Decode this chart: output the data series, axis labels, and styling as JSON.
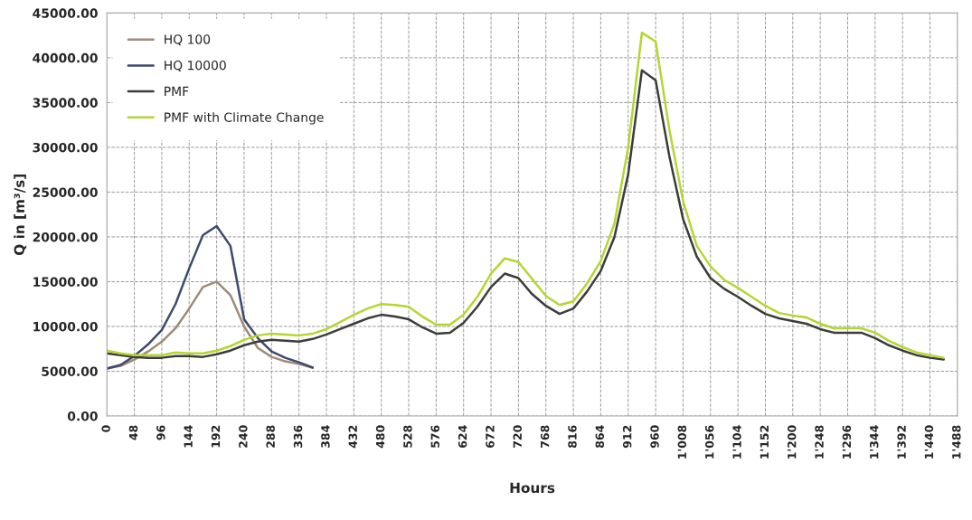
{
  "chart_data": {
    "type": "line",
    "xlabel": "Hours",
    "ylabel": "Q in [m³/s]",
    "grid": true,
    "legend": "top left",
    "line_style": "solid",
    "marker": "none",
    "xlim": [
      0,
      1488
    ],
    "ylim": [
      0,
      45000
    ],
    "xticks": [
      0,
      48,
      96,
      144,
      192,
      240,
      288,
      336,
      384,
      432,
      480,
      528,
      576,
      624,
      672,
      720,
      768,
      816,
      864,
      912,
      960,
      {
        "value": 1008,
        "label": "1'008"
      },
      {
        "value": 1056,
        "label": "1'056"
      },
      {
        "value": 1104,
        "label": "1'104"
      },
      {
        "value": 1152,
        "label": "1'152"
      },
      {
        "value": 1200,
        "label": "1'200"
      },
      {
        "value": 1248,
        "label": "1'248"
      },
      {
        "value": 1296,
        "label": "1'296"
      },
      {
        "value": 1344,
        "label": "1'344"
      },
      {
        "value": 1392,
        "label": "1'392"
      },
      {
        "value": 1440,
        "label": "1'440"
      },
      {
        "value": 1488,
        "label": "1'488"
      }
    ],
    "yticks": [
      {
        "value": 0,
        "label": "0.00"
      },
      {
        "value": 5000,
        "label": "5000.00"
      },
      {
        "value": 10000,
        "label": "10000.00"
      },
      {
        "value": 15000,
        "label": "15000.00"
      },
      {
        "value": 20000,
        "label": "20000.00"
      },
      {
        "value": 25000,
        "label": "25000.00"
      },
      {
        "value": 30000,
        "label": "30000.00"
      },
      {
        "value": 35000,
        "label": "35000.00"
      },
      {
        "value": 40000,
        "label": "40000.00"
      },
      {
        "value": 45000,
        "label": "45000.00"
      }
    ],
    "series": [
      {
        "name": "HQ 100",
        "color": "#a08a78",
        "x": [
          0,
          24,
          48,
          72,
          96,
          120,
          144,
          168,
          192,
          216,
          240,
          264,
          288,
          312,
          336,
          360
        ],
        "values": [
          5300,
          5600,
          6300,
          7200,
          8300,
          9800,
          12000,
          14400,
          15000,
          13500,
          10000,
          7600,
          6600,
          6100,
          5800,
          5400
        ]
      },
      {
        "name": "HQ 10000",
        "color": "#3e4a6e",
        "x": [
          0,
          24,
          48,
          72,
          96,
          120,
          144,
          168,
          192,
          216,
          240,
          264,
          288,
          312,
          336,
          360
        ],
        "values": [
          5300,
          5700,
          6700,
          8000,
          9600,
          12500,
          16500,
          20200,
          21200,
          19000,
          10800,
          8700,
          7200,
          6500,
          6000,
          5400
        ]
      },
      {
        "name": "PMF",
        "color": "#3c3c3c",
        "x": [
          0,
          24,
          48,
          72,
          96,
          120,
          144,
          168,
          192,
          216,
          240,
          264,
          288,
          312,
          336,
          360,
          384,
          408,
          432,
          456,
          480,
          504,
          528,
          552,
          576,
          600,
          624,
          648,
          672,
          696,
          720,
          744,
          768,
          792,
          816,
          840,
          864,
          888,
          912,
          936,
          960,
          984,
          1008,
          1032,
          1056,
          1080,
          1104,
          1128,
          1152,
          1176,
          1200,
          1224,
          1248,
          1272,
          1296,
          1320,
          1344,
          1368,
          1392,
          1416,
          1440,
          1464
        ],
        "values": [
          7000,
          6800,
          6600,
          6500,
          6500,
          6700,
          6700,
          6600,
          6900,
          7300,
          7900,
          8300,
          8500,
          8400,
          8300,
          8600,
          9100,
          9700,
          10300,
          10900,
          11300,
          11100,
          10800,
          9900,
          9200,
          9300,
          10400,
          12200,
          14400,
          15900,
          15400,
          13600,
          12300,
          11400,
          12000,
          13900,
          16200,
          20000,
          27000,
          38600,
          37500,
          29000,
          22000,
          17800,
          15400,
          14200,
          13300,
          12300,
          11400,
          10900,
          10600,
          10300,
          9700,
          9300,
          9300,
          9300,
          8700,
          7900,
          7300,
          6800,
          6500,
          6300
        ]
      },
      {
        "name": "PMF with Climate Change",
        "color": "#b5d631",
        "x": [
          0,
          24,
          48,
          72,
          96,
          120,
          144,
          168,
          192,
          216,
          240,
          264,
          288,
          312,
          336,
          360,
          384,
          408,
          432,
          456,
          480,
          504,
          528,
          552,
          576,
          600,
          624,
          648,
          672,
          696,
          720,
          744,
          768,
          792,
          816,
          840,
          864,
          888,
          912,
          936,
          960,
          984,
          1008,
          1032,
          1056,
          1080,
          1104,
          1128,
          1152,
          1176,
          1200,
          1224,
          1248,
          1272,
          1296,
          1320,
          1344,
          1368,
          1392,
          1416,
          1440,
          1464
        ],
        "values": [
          7300,
          7000,
          6800,
          6800,
          6800,
          7100,
          7000,
          7000,
          7300,
          7800,
          8500,
          9000,
          9200,
          9100,
          9000,
          9200,
          9700,
          10500,
          11300,
          12000,
          12500,
          12400,
          12200,
          11100,
          10200,
          10200,
          11300,
          13300,
          15900,
          17600,
          17200,
          15300,
          13400,
          12400,
          12800,
          14800,
          17300,
          21500,
          30000,
          42800,
          41800,
          32000,
          24000,
          19000,
          16700,
          15200,
          14300,
          13300,
          12300,
          11500,
          11200,
          11000,
          10300,
          9800,
          9800,
          9800,
          9300,
          8400,
          7700,
          7100,
          6800,
          6500
        ]
      }
    ]
  }
}
